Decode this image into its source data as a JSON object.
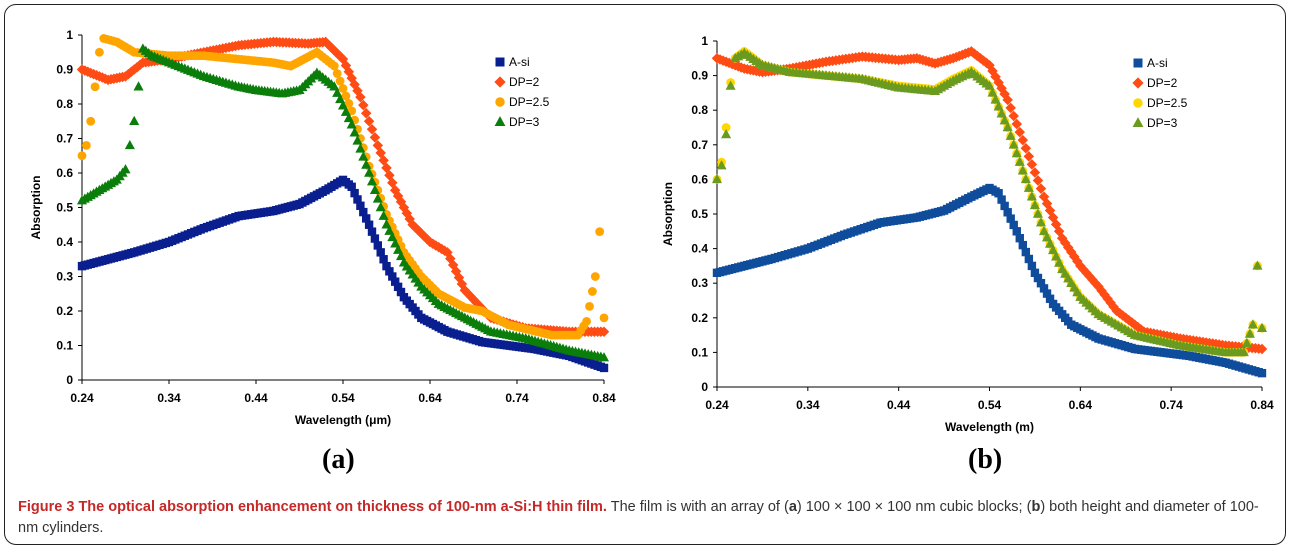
{
  "caption": {
    "label": "Figure 3",
    "bold_text": "The optical absorption enhancement on thickness of 100-nm a-Si:H thin film.",
    "rest_1": "The film is with an array of (",
    "rest_2": ") 100 × 100 × 100 nm cubic blocks; (",
    "rest_3": ") both height and diameter of 100-nm cylinders.",
    "letter_a": "a",
    "letter_b": "b"
  },
  "colors": {
    "A-si": "#0a1f8f",
    "DP=2": "#ff4b14",
    "DP=2.5": "#ffa500",
    "DP=3": "#0a7d0a"
  },
  "chart_data": [
    {
      "type": "scatter",
      "panel_label": "(a)",
      "xlabel": "Wavelength (μm)",
      "ylabel": "Absorption",
      "xlim": [
        0.24,
        0.84
      ],
      "ylim": [
        0,
        1
      ],
      "xticks": [
        "0.24",
        "0.34",
        "0.44",
        "0.54",
        "0.64",
        "0.74",
        "0.84"
      ],
      "yticks": [
        "0",
        "0.1",
        "0.2",
        "0.3",
        "0.4",
        "0.5",
        "0.6",
        "0.7",
        "0.8",
        "0.9",
        "1"
      ],
      "grid": false,
      "legend_position": "right",
      "series": [
        {
          "name": "A-si",
          "color": "#0a1f8f",
          "marker": "square",
          "points": [
            [
              0.24,
              0.33
            ],
            [
              0.27,
              0.35
            ],
            [
              0.3,
              0.37
            ],
            [
              0.34,
              0.4
            ],
            [
              0.38,
              0.44
            ],
            [
              0.42,
              0.475
            ],
            [
              0.46,
              0.49
            ],
            [
              0.49,
              0.51
            ],
            [
              0.52,
              0.55
            ],
            [
              0.54,
              0.58
            ],
            [
              0.55,
              0.56
            ],
            [
              0.57,
              0.45
            ],
            [
              0.59,
              0.33
            ],
            [
              0.61,
              0.24
            ],
            [
              0.63,
              0.18
            ],
            [
              0.66,
              0.14
            ],
            [
              0.7,
              0.11
            ],
            [
              0.76,
              0.09
            ],
            [
              0.8,
              0.07
            ],
            [
              0.84,
              0.035
            ]
          ]
        },
        {
          "name": "DP=2",
          "color": "#ff4b14",
          "marker": "diamond",
          "points": [
            [
              0.24,
              0.9
            ],
            [
              0.27,
              0.87
            ],
            [
              0.29,
              0.88
            ],
            [
              0.31,
              0.92
            ],
            [
              0.34,
              0.93
            ],
            [
              0.38,
              0.95
            ],
            [
              0.42,
              0.97
            ],
            [
              0.46,
              0.98
            ],
            [
              0.5,
              0.975
            ],
            [
              0.52,
              0.98
            ],
            [
              0.54,
              0.93
            ],
            [
              0.56,
              0.82
            ],
            [
              0.58,
              0.68
            ],
            [
              0.6,
              0.55
            ],
            [
              0.62,
              0.45
            ],
            [
              0.64,
              0.4
            ],
            [
              0.66,
              0.37
            ],
            [
              0.68,
              0.26
            ],
            [
              0.71,
              0.18
            ],
            [
              0.75,
              0.15
            ],
            [
              0.8,
              0.14
            ],
            [
              0.84,
              0.14
            ]
          ]
        },
        {
          "name": "DP=2.5",
          "color": "#ffa500",
          "marker": "circle",
          "points": [
            [
              0.24,
              0.65
            ],
            [
              0.245,
              0.68
            ],
            [
              0.25,
              0.75
            ],
            [
              0.255,
              0.85
            ],
            [
              0.26,
              0.95
            ],
            [
              0.265,
              0.99
            ],
            [
              0.28,
              0.98
            ],
            [
              0.3,
              0.95
            ],
            [
              0.34,
              0.94
            ],
            [
              0.38,
              0.94
            ],
            [
              0.42,
              0.93
            ],
            [
              0.46,
              0.92
            ],
            [
              0.48,
              0.91
            ],
            [
              0.51,
              0.95
            ],
            [
              0.53,
              0.91
            ],
            [
              0.55,
              0.78
            ],
            [
              0.57,
              0.62
            ],
            [
              0.59,
              0.48
            ],
            [
              0.61,
              0.37
            ],
            [
              0.63,
              0.3
            ],
            [
              0.65,
              0.25
            ],
            [
              0.68,
              0.21
            ],
            [
              0.7,
              0.2
            ],
            [
              0.73,
              0.16
            ],
            [
              0.78,
              0.13
            ],
            [
              0.81,
              0.13
            ],
            [
              0.82,
              0.17
            ],
            [
              0.83,
              0.3
            ],
            [
              0.835,
              0.43
            ],
            [
              0.84,
              0.18
            ]
          ]
        },
        {
          "name": "DP=3",
          "color": "#0a7d0a",
          "marker": "triangle",
          "points": [
            [
              0.24,
              0.52
            ],
            [
              0.26,
              0.55
            ],
            [
              0.28,
              0.58
            ],
            [
              0.29,
              0.61
            ],
            [
              0.295,
              0.68
            ],
            [
              0.3,
              0.75
            ],
            [
              0.305,
              0.85
            ],
            [
              0.31,
              0.96
            ],
            [
              0.32,
              0.94
            ],
            [
              0.34,
              0.92
            ],
            [
              0.38,
              0.88
            ],
            [
              0.42,
              0.85
            ],
            [
              0.44,
              0.84
            ],
            [
              0.47,
              0.83
            ],
            [
              0.49,
              0.84
            ],
            [
              0.51,
              0.89
            ],
            [
              0.53,
              0.85
            ],
            [
              0.55,
              0.74
            ],
            [
              0.57,
              0.6
            ],
            [
              0.59,
              0.45
            ],
            [
              0.61,
              0.34
            ],
            [
              0.63,
              0.27
            ],
            [
              0.65,
              0.22
            ],
            [
              0.68,
              0.18
            ],
            [
              0.71,
              0.14
            ],
            [
              0.75,
              0.12
            ],
            [
              0.8,
              0.085
            ],
            [
              0.84,
              0.065
            ]
          ]
        }
      ]
    },
    {
      "type": "scatter",
      "panel_label": "(b)",
      "xlabel": "Wavelength (m)",
      "ylabel": "Absorption",
      "xlim": [
        0.24,
        0.84
      ],
      "ylim": [
        0,
        1
      ],
      "xticks": [
        "0.24",
        "0.34",
        "0.44",
        "0.54",
        "0.64",
        "0.74",
        "0.84"
      ],
      "yticks": [
        "0",
        "0.1",
        "0.2",
        "0.3",
        "0.4",
        "0.5",
        "0.6",
        "0.7",
        "0.8",
        "0.9",
        "1"
      ],
      "grid": false,
      "legend_position": "right",
      "series": [
        {
          "name": "A-si",
          "color": "#0f4c9c",
          "marker": "square",
          "points": [
            [
              0.24,
              0.33
            ],
            [
              0.27,
              0.35
            ],
            [
              0.3,
              0.37
            ],
            [
              0.34,
              0.4
            ],
            [
              0.38,
              0.44
            ],
            [
              0.42,
              0.475
            ],
            [
              0.46,
              0.49
            ],
            [
              0.49,
              0.51
            ],
            [
              0.52,
              0.55
            ],
            [
              0.54,
              0.575
            ],
            [
              0.55,
              0.56
            ],
            [
              0.57,
              0.45
            ],
            [
              0.59,
              0.33
            ],
            [
              0.61,
              0.24
            ],
            [
              0.63,
              0.18
            ],
            [
              0.66,
              0.14
            ],
            [
              0.7,
              0.11
            ],
            [
              0.76,
              0.09
            ],
            [
              0.8,
              0.07
            ],
            [
              0.84,
              0.04
            ]
          ]
        },
        {
          "name": "DP=2",
          "color": "#ff4b14",
          "marker": "diamond",
          "points": [
            [
              0.24,
              0.95
            ],
            [
              0.27,
              0.92
            ],
            [
              0.29,
              0.91
            ],
            [
              0.32,
              0.92
            ],
            [
              0.36,
              0.94
            ],
            [
              0.4,
              0.955
            ],
            [
              0.44,
              0.945
            ],
            [
              0.46,
              0.95
            ],
            [
              0.48,
              0.935
            ],
            [
              0.5,
              0.95
            ],
            [
              0.52,
              0.97
            ],
            [
              0.54,
              0.93
            ],
            [
              0.56,
              0.83
            ],
            [
              0.58,
              0.69
            ],
            [
              0.6,
              0.55
            ],
            [
              0.62,
              0.43
            ],
            [
              0.64,
              0.35
            ],
            [
              0.66,
              0.29
            ],
            [
              0.68,
              0.22
            ],
            [
              0.71,
              0.16
            ],
            [
              0.75,
              0.14
            ],
            [
              0.8,
              0.12
            ],
            [
              0.84,
              0.11
            ]
          ]
        },
        {
          "name": "DP=2.5",
          "color": "#ffd700",
          "marker": "circle",
          "points": [
            [
              0.24,
              0.6
            ],
            [
              0.245,
              0.65
            ],
            [
              0.25,
              0.75
            ],
            [
              0.255,
              0.88
            ],
            [
              0.26,
              0.95
            ],
            [
              0.27,
              0.97
            ],
            [
              0.29,
              0.93
            ],
            [
              0.32,
              0.91
            ],
            [
              0.36,
              0.9
            ],
            [
              0.4,
              0.89
            ],
            [
              0.44,
              0.87
            ],
            [
              0.48,
              0.86
            ],
            [
              0.5,
              0.89
            ],
            [
              0.52,
              0.915
            ],
            [
              0.54,
              0.87
            ],
            [
              0.56,
              0.75
            ],
            [
              0.58,
              0.6
            ],
            [
              0.6,
              0.45
            ],
            [
              0.62,
              0.34
            ],
            [
              0.64,
              0.26
            ],
            [
              0.66,
              0.21
            ],
            [
              0.7,
              0.15
            ],
            [
              0.75,
              0.12
            ],
            [
              0.8,
              0.1
            ],
            [
              0.82,
              0.1
            ],
            [
              0.83,
              0.18
            ],
            [
              0.835,
              0.35
            ],
            [
              0.84,
              0.17
            ]
          ]
        },
        {
          "name": "DP=3",
          "color": "#6a9a1f",
          "marker": "triangle",
          "points": [
            [
              0.24,
              0.6
            ],
            [
              0.245,
              0.64
            ],
            [
              0.25,
              0.73
            ],
            [
              0.255,
              0.87
            ],
            [
              0.26,
              0.95
            ],
            [
              0.27,
              0.965
            ],
            [
              0.29,
              0.93
            ],
            [
              0.32,
              0.91
            ],
            [
              0.36,
              0.9
            ],
            [
              0.4,
              0.89
            ],
            [
              0.44,
              0.865
            ],
            [
              0.48,
              0.855
            ],
            [
              0.5,
              0.885
            ],
            [
              0.52,
              0.91
            ],
            [
              0.54,
              0.87
            ],
            [
              0.56,
              0.75
            ],
            [
              0.58,
              0.6
            ],
            [
              0.6,
              0.45
            ],
            [
              0.62,
              0.34
            ],
            [
              0.64,
              0.26
            ],
            [
              0.66,
              0.21
            ],
            [
              0.7,
              0.15
            ],
            [
              0.75,
              0.12
            ],
            [
              0.8,
              0.1
            ],
            [
              0.82,
              0.1
            ],
            [
              0.83,
              0.18
            ],
            [
              0.835,
              0.35
            ],
            [
              0.84,
              0.17
            ]
          ]
        }
      ]
    }
  ]
}
